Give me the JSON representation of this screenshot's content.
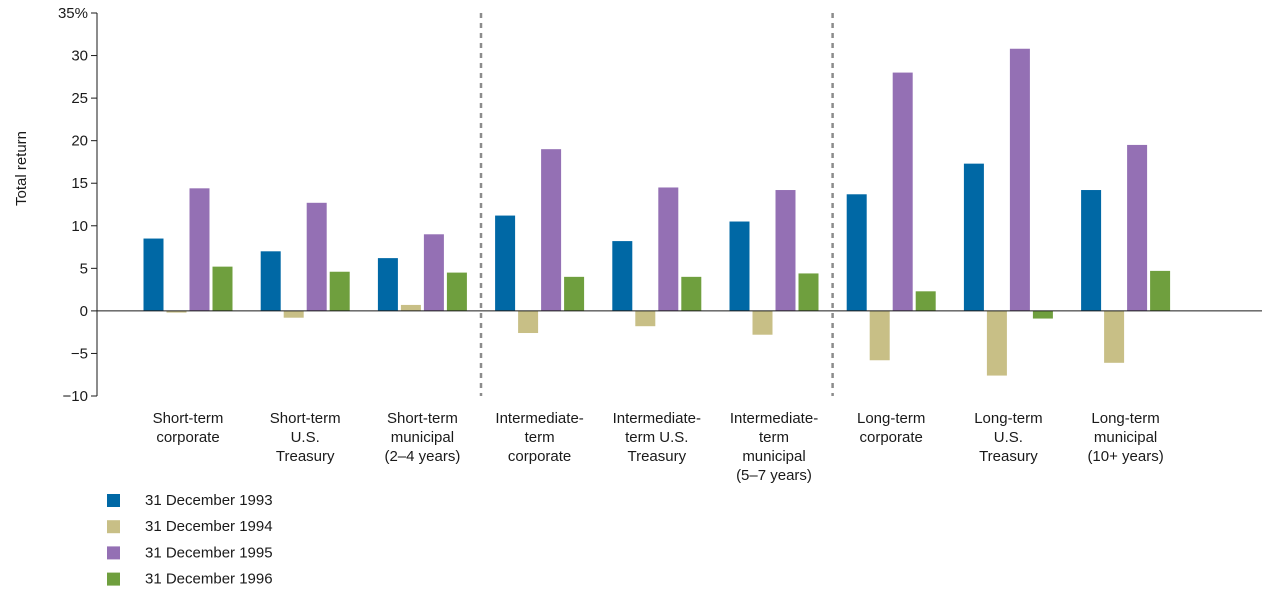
{
  "chart_data": {
    "type": "bar",
    "title": "",
    "xlabel": "",
    "ylabel": "Total return",
    "ylim": [
      -10,
      35
    ],
    "yticks": [
      {
        "value": 35,
        "label": "35%"
      },
      {
        "value": 30,
        "label": "30"
      },
      {
        "value": 25,
        "label": "25"
      },
      {
        "value": 20,
        "label": "20"
      },
      {
        "value": 15,
        "label": "15"
      },
      {
        "value": 10,
        "label": "10"
      },
      {
        "value": 5,
        "label": "5"
      },
      {
        "value": 0,
        "label": "0"
      },
      {
        "value": -5,
        "label": "−5"
      },
      {
        "value": -10,
        "label": "−10"
      }
    ],
    "grid": false,
    "legend_position": "bottom-left",
    "group_dividers_after": [
      2,
      5
    ],
    "categories": [
      [
        "Short-term",
        "corporate"
      ],
      [
        "Short-term",
        "U.S.",
        "Treasury"
      ],
      [
        "Short-term",
        "municipal",
        "(2–4 years)"
      ],
      [
        "Intermediate-",
        "term",
        "corporate"
      ],
      [
        "Intermediate-",
        "term U.S.",
        "Treasury"
      ],
      [
        "Intermediate-",
        "term",
        "municipal",
        "(5–7 years)"
      ],
      [
        "Long-term",
        "corporate"
      ],
      [
        "Long-term",
        "U.S.",
        "Treasury"
      ],
      [
        "Long-term",
        "municipal",
        "(10+ years)"
      ]
    ],
    "series": [
      {
        "name": "31 December 1993",
        "color": "#0068a5",
        "values": [
          8.5,
          7.0,
          6.2,
          11.2,
          8.2,
          10.5,
          13.7,
          17.3,
          14.2
        ]
      },
      {
        "name": "31 December 1994",
        "color": "#c8bf86",
        "values": [
          -0.2,
          -0.8,
          0.7,
          -2.6,
          -1.8,
          -2.8,
          -5.8,
          -7.6,
          -6.1
        ]
      },
      {
        "name": "31 December 1995",
        "color": "#9470b4",
        "values": [
          14.4,
          12.7,
          9.0,
          19.0,
          14.5,
          14.2,
          28.0,
          30.8,
          19.5
        ]
      },
      {
        "name": "31 December 1996",
        "color": "#6f9f3e",
        "values": [
          5.2,
          4.6,
          4.5,
          4.0,
          4.0,
          4.4,
          2.3,
          -0.9,
          4.7
        ]
      }
    ]
  }
}
